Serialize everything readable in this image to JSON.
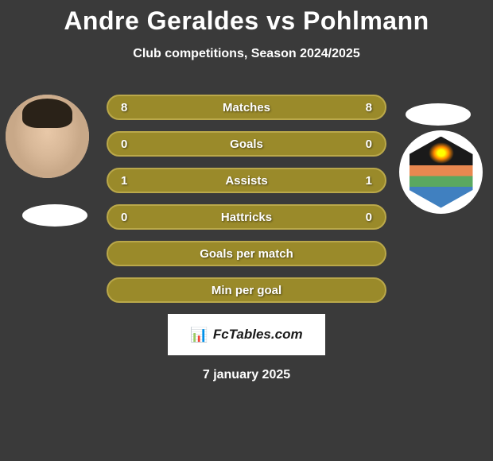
{
  "title": "Andre Geraldes vs Pohlmann",
  "subtitle": "Club competitions, Season 2024/2025",
  "date": "7 january 2025",
  "watermark": "FcTables.com",
  "background_color": "#3a3a3a",
  "stats": [
    {
      "label": "Matches",
      "left_value": "8",
      "right_value": "8",
      "has_values": true,
      "bg_color": "#9a8a2a",
      "border_color": "#baa84a"
    },
    {
      "label": "Goals",
      "left_value": "0",
      "right_value": "0",
      "has_values": true,
      "bg_color": "#9a8a2a",
      "border_color": "#baa84a"
    },
    {
      "label": "Assists",
      "left_value": "1",
      "right_value": "1",
      "has_values": true,
      "bg_color": "#9a8a2a",
      "border_color": "#baa84a"
    },
    {
      "label": "Hattricks",
      "left_value": "0",
      "right_value": "0",
      "has_values": true,
      "bg_color": "#9a8a2a",
      "border_color": "#baa84a"
    },
    {
      "label": "Goals per match",
      "has_values": false,
      "bg_color": "#9a8a2a",
      "border_color": "#baa84a"
    },
    {
      "label": "Min per goal",
      "has_values": false,
      "bg_color": "#9a8a2a",
      "border_color": "#baa84a"
    }
  ],
  "title_color": "#ffffff",
  "title_fontsize": 32,
  "subtitle_fontsize": 16,
  "stat_fontsize": 15,
  "stat_row_height": 32,
  "stat_row_spacing": 14
}
